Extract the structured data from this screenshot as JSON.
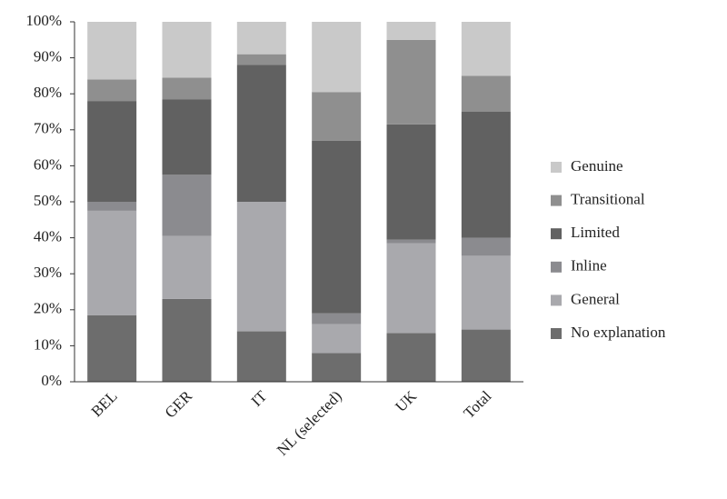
{
  "chart_data": {
    "type": "stacked_bar",
    "categories": [
      "BEL",
      "GER",
      "IT",
      "NL (selected)",
      "UK",
      "Total"
    ],
    "series": [
      {
        "name": "No explanation",
        "color": "#6d6d6d",
        "values": [
          18.5,
          23,
          14,
          8,
          13.5,
          14.5
        ]
      },
      {
        "name": "General",
        "color": "#a9a9ad",
        "values": [
          29,
          17.5,
          36,
          8,
          25,
          20.5
        ]
      },
      {
        "name": "Inline",
        "color": "#8b8b8f",
        "values": [
          2.5,
          17,
          0,
          3,
          1,
          5
        ]
      },
      {
        "name": "Limited",
        "color": "#616161",
        "values": [
          28,
          21,
          38,
          48,
          32,
          35
        ]
      },
      {
        "name": "Transitional",
        "color": "#8f8f8f",
        "values": [
          6,
          6,
          3,
          13.5,
          23.5,
          10
        ]
      },
      {
        "name": "Genuine",
        "color": "#c9c9c9",
        "values": [
          16,
          15.5,
          9,
          19.5,
          5,
          15
        ]
      }
    ],
    "ylim": [
      0,
      100
    ],
    "yticks": [
      {
        "value": 0,
        "label": "0%"
      },
      {
        "value": 10,
        "label": "10%"
      },
      {
        "value": 20,
        "label": "20%"
      },
      {
        "value": 30,
        "label": "30%"
      },
      {
        "value": 40,
        "label": "40%"
      },
      {
        "value": 50,
        "label": "50%"
      },
      {
        "value": 60,
        "label": "60%"
      },
      {
        "value": 70,
        "label": "70%"
      },
      {
        "value": 80,
        "label": "80%"
      },
      {
        "value": 90,
        "label": "90%"
      },
      {
        "value": 100,
        "label": "100%"
      }
    ],
    "grid": false,
    "legend": "right"
  }
}
